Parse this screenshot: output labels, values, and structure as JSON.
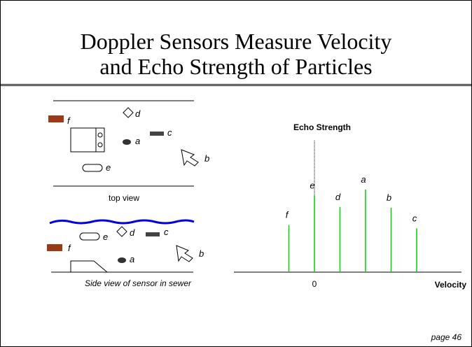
{
  "title": {
    "line1": "Doppler Sensors Measure Velocity",
    "line2": "and Echo Strength of Particles"
  },
  "top_view": {
    "caption": "top view",
    "labels": {
      "f": "f",
      "d": "d",
      "c": "c",
      "a": "a",
      "b": "b",
      "e": "e"
    }
  },
  "side_view": {
    "caption": "Side view of sensor in sewer",
    "labels": {
      "e": "e",
      "d": "d",
      "c": "c",
      "f": "f",
      "b": "b",
      "a": "a"
    }
  },
  "colors": {
    "f_particle": "#9b3a14",
    "water": "#0000e0",
    "bars": "#00d000",
    "c_particle": "#444444"
  },
  "chart_data": {
    "type": "bar",
    "title": "Echo Strength",
    "xlabel": "Velocity",
    "x_tick": "0",
    "categories": [
      "f",
      "e",
      "d",
      "a",
      "b",
      "c"
    ],
    "x": [
      -1,
      0,
      1,
      2,
      3,
      4
    ],
    "values": [
      0.57,
      0.93,
      0.79,
      1.0,
      0.78,
      0.53
    ]
  },
  "page": "page 46"
}
